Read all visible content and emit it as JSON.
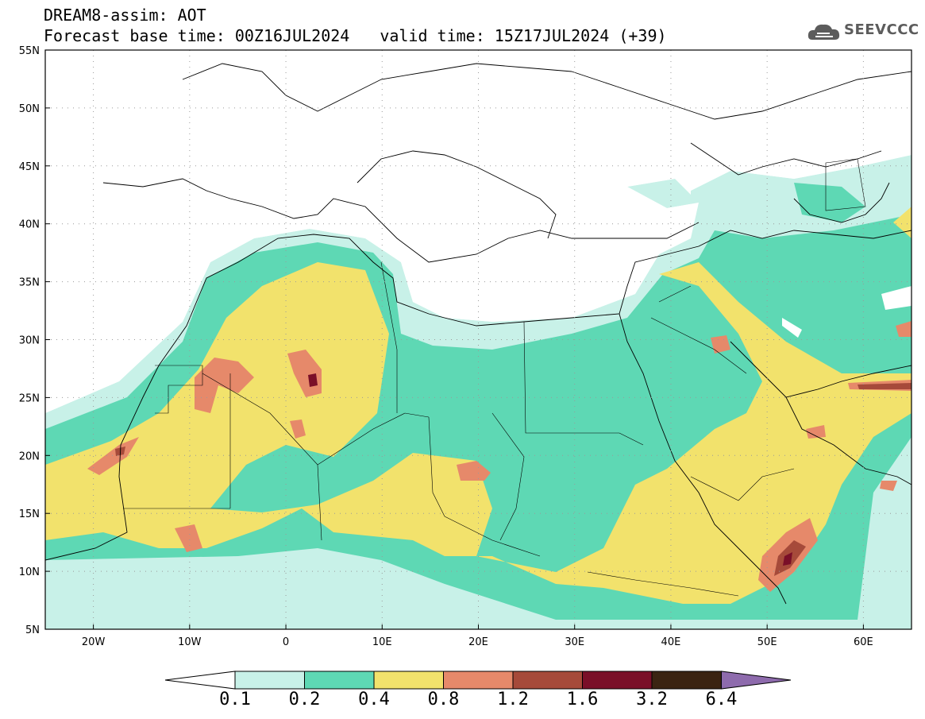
{
  "header": {
    "title": "DREAM8-assim: AOT",
    "base_time": "Forecast base time: 00Z16JUL2024",
    "valid_time": "valid time: 15Z17JUL2024 (+39)"
  },
  "logo": {
    "text": "SEEVCCC",
    "icon": "cloud-icon"
  },
  "axes": {
    "lon_labels": [
      "20W",
      "10W",
      "0",
      "10E",
      "20E",
      "30E",
      "40E",
      "50E",
      "60E"
    ],
    "lat_labels": [
      "55N",
      "50N",
      "45N",
      "40N",
      "35N",
      "30N",
      "25N",
      "20N",
      "15N",
      "10N",
      "5N"
    ],
    "lon_values": [
      -20,
      -10,
      0,
      10,
      20,
      30,
      40,
      50,
      60
    ],
    "lat_values": [
      55,
      50,
      45,
      40,
      35,
      30,
      25,
      20,
      15,
      10,
      5
    ],
    "lon_range": [
      -25,
      65
    ],
    "lat_range": [
      5,
      55
    ]
  },
  "colorbar": {
    "labels": [
      "0.1",
      "0.2",
      "0.4",
      "0.8",
      "1.2",
      "1.6",
      "3.2",
      "6.4"
    ],
    "colors": [
      "#c8f1e8",
      "#5ed8b4",
      "#f2e26c",
      "#e6896a",
      "#a64a3a",
      "#7a0f28",
      "#3b2412",
      "#8e6bad"
    ],
    "below_color": "#ffffff"
  },
  "field_colors": {
    "c1": "#c8f1e8",
    "c2": "#5ed8b4",
    "c3": "#f2e26c",
    "c4": "#e6896a",
    "c5": "#a64a3a",
    "c6": "#7a0f28"
  }
}
